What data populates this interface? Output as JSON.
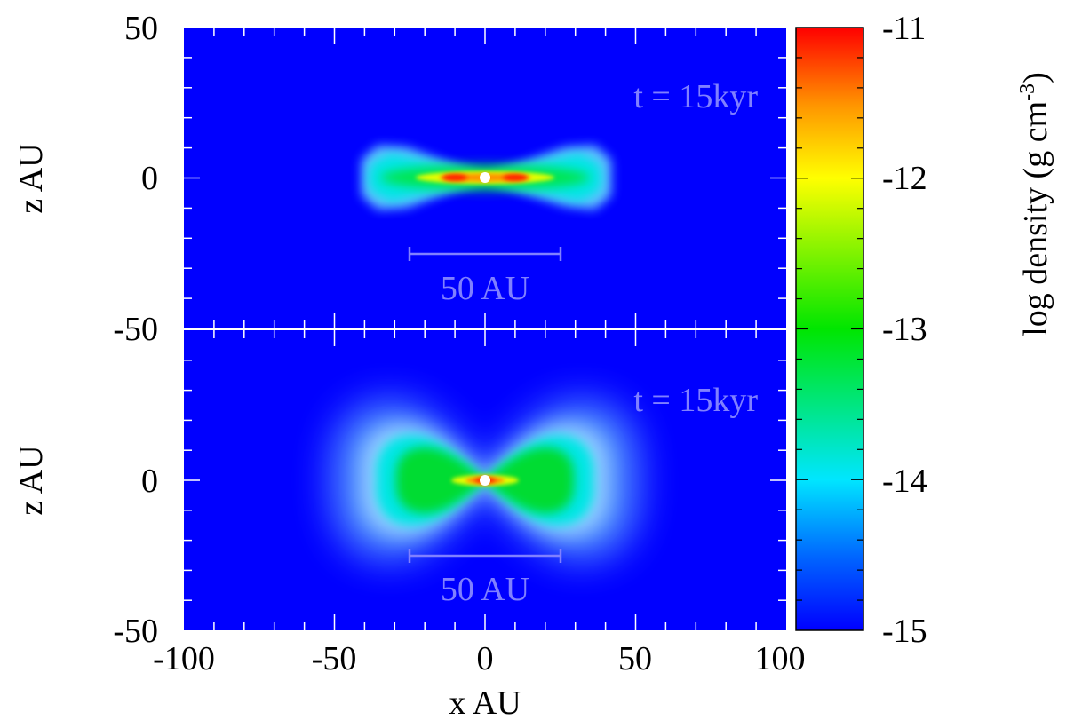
{
  "chart_data": {
    "type": "heatmap",
    "panels": [
      {
        "ylabel": "z AU",
        "annotation": "t = 15kyr",
        "scalebar_label": "50 AU",
        "scalebar_x_range": [
          -25,
          25
        ],
        "scalebar_z": -25,
        "x_range": [
          -100,
          100
        ],
        "z_range": [
          -50,
          50
        ],
        "y_tick_labels": [
          "50",
          "0",
          "-50"
        ],
        "structure": {
          "shape": "thin flared disc",
          "radial_extent_au": 43,
          "peak_log_density": -11.2,
          "peak_positions_x_au": [
            -10,
            10
          ]
        }
      },
      {
        "ylabel": "z AU",
        "annotation": "t = 15kyr",
        "scalebar_label": "50 AU",
        "scalebar_x_range": [
          -25,
          25
        ],
        "scalebar_z": -25,
        "x_range": [
          -100,
          100
        ],
        "z_range": [
          -50,
          50
        ],
        "y_tick_labels": [
          "0",
          "-50"
        ],
        "structure": {
          "shape": "thick bipolar flared envelope",
          "radial_extent_au": 50,
          "peak_log_density": -11.4,
          "peak_positions_x_au": [
            -4,
            4
          ]
        }
      }
    ],
    "xlabel": "x AU",
    "x_tick_labels": [
      "-100",
      "-50",
      "0",
      "50",
      "100"
    ],
    "colorbar": {
      "label_main": "log density (g cm",
      "label_sup": "-3",
      "label_close": ")",
      "range": [
        -15,
        -11
      ],
      "tick_labels": [
        "-11",
        "-12",
        "-13",
        "-14",
        "-15"
      ],
      "colormap": [
        "#0000ff",
        "#0064ff",
        "#00e6ff",
        "#00e600",
        "#ffff00",
        "#ff9600",
        "#ff0000"
      ]
    },
    "background_color": "#0000ff",
    "annotation_color": "#8080ff"
  }
}
